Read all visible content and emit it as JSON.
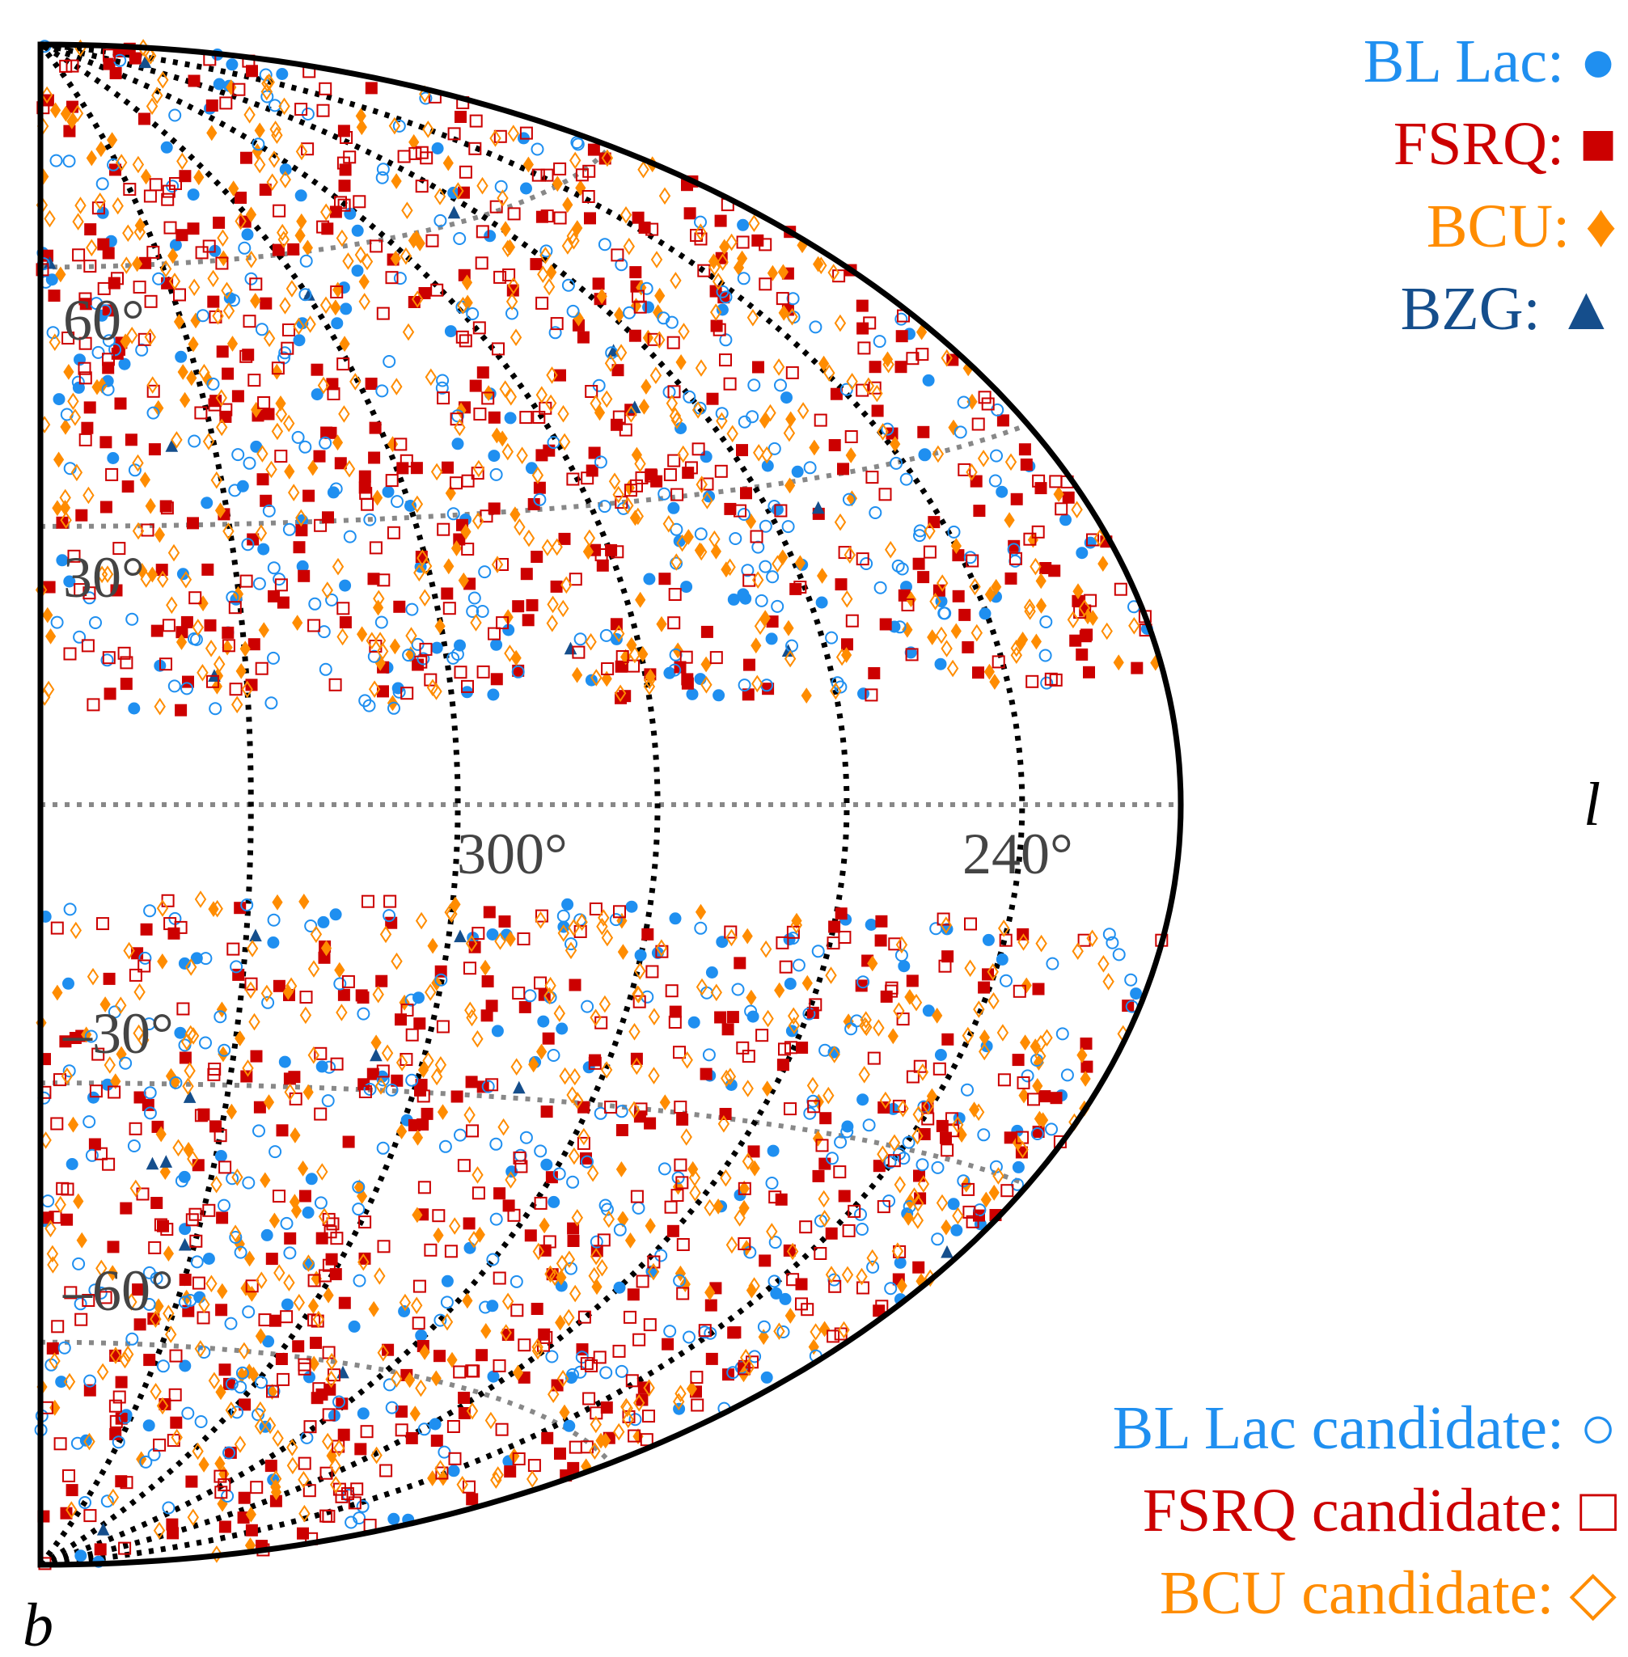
{
  "chart_data": {
    "type": "scatter",
    "projection": "half-sky hammer-aitoff (Galactic coordinates, l from 180 to 360)",
    "xlabel": "l",
    "ylabel": "b",
    "xlim": [
      180,
      360
    ],
    "ylim": [
      -90,
      90
    ],
    "grid": true,
    "latitude_ticks": [
      "60°",
      "30°",
      "–30°",
      "–60°"
    ],
    "longitude_ticks": [
      "300°",
      "240°"
    ],
    "legend_placement": "top-right and bottom-right",
    "legend": [
      {
        "label": "BL Lac:",
        "symbol": "●",
        "color": "#1f8ff0"
      },
      {
        "label": "FSRQ:",
        "symbol": "■",
        "color": "#cc0000"
      },
      {
        "label": "BCU:",
        "symbol": "♦",
        "color": "#ff8c00"
      },
      {
        "label": "BZG:",
        "symbol": "▲",
        "color": "#154e8c"
      },
      {
        "label": "BL Lac candidate:",
        "symbol": "○",
        "color": "#1f8ff0"
      },
      {
        "label": "FSRQ candidate:",
        "symbol": "□",
        "color": "#cc0000"
      },
      {
        "label": "BCU candidate:",
        "symbol": "◇",
        "color": "#ff8c00"
      }
    ],
    "series": [
      {
        "name": "BL Lac",
        "marker": "circle",
        "filled": true,
        "color": "#1f8ff0",
        "count": 230,
        "seed": 11
      },
      {
        "name": "FSRQ",
        "marker": "square",
        "filled": true,
        "color": "#cc0000",
        "count": 480,
        "seed": 23
      },
      {
        "name": "BCU",
        "marker": "diamond",
        "filled": true,
        "color": "#ff8c00",
        "count": 360,
        "seed": 37
      },
      {
        "name": "BZG",
        "marker": "triangle",
        "filled": true,
        "color": "#154e8c",
        "count": 22,
        "seed": 41
      },
      {
        "name": "BL Lac candidate",
        "marker": "circle",
        "filled": false,
        "color": "#1f8ff0",
        "count": 420,
        "seed": 53
      },
      {
        "name": "FSRQ candidate",
        "marker": "square",
        "filled": false,
        "color": "#cc0000",
        "count": 520,
        "seed": 67
      },
      {
        "name": "BCU candidate",
        "marker": "diamond",
        "filled": false,
        "color": "#ff8c00",
        "count": 560,
        "seed": 79
      }
    ]
  }
}
